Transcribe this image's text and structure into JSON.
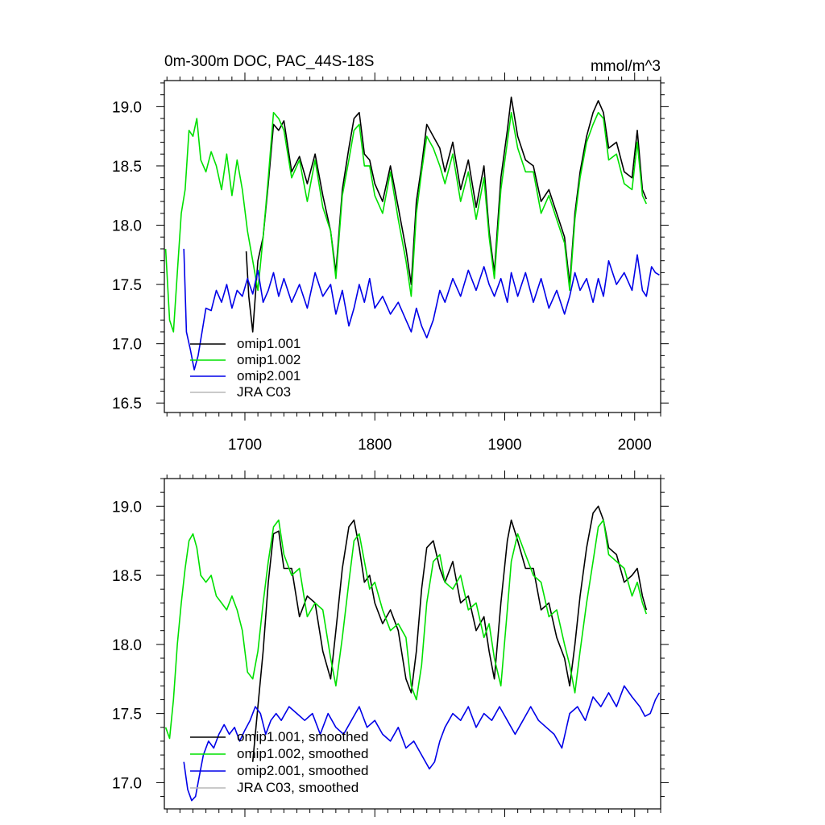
{
  "header": {
    "title": "0m-300m DOC, PAC_44S-18S",
    "units": "mmol/m^3"
  },
  "colors": {
    "omip1_001": "#000000",
    "omip1_002": "#00e000",
    "omip2_001": "#0000e8",
    "jra_c03": "#b8b8b8"
  },
  "chart_data": [
    {
      "type": "line",
      "panel": "raw",
      "title": "0m-300m DOC, PAC_44S-18S",
      "ylabel": "mmol/m^3",
      "xlim": [
        1638,
        2020
      ],
      "ylim": [
        16.42,
        19.22
      ],
      "xticks": [
        1700,
        1800,
        1900,
        2000
      ],
      "xtick_labels": [
        "1700",
        "1800",
        "1900",
        "2000"
      ],
      "yticks": [
        16.5,
        17.0,
        17.5,
        18.0,
        18.5,
        19.0
      ],
      "ytick_labels": [
        "16.5",
        "17.0",
        "17.5",
        "18.0",
        "18.5",
        "19.0"
      ],
      "legend_position": "bottom-left",
      "series": [
        {
          "name": "omip1.001",
          "color_key": "omip1_001",
          "x": [
            1701,
            1703,
            1706,
            1710,
            1714,
            1718,
            1722,
            1726,
            1730,
            1736,
            1742,
            1748,
            1754,
            1760,
            1766,
            1770,
            1775,
            1780,
            1784,
            1788,
            1792,
            1796,
            1800,
            1806,
            1812,
            1818,
            1824,
            1828,
            1832,
            1836,
            1840,
            1845,
            1850,
            1854,
            1860,
            1866,
            1872,
            1878,
            1884,
            1888,
            1892,
            1897,
            1902,
            1905,
            1910,
            1916,
            1922,
            1928,
            1934,
            1940,
            1946,
            1950,
            1954,
            1958,
            1963,
            1968,
            1972,
            1976,
            1980,
            1986,
            1992,
            1998,
            2002,
            2006,
            2009
          ],
          "y": [
            17.78,
            17.4,
            17.1,
            17.7,
            17.9,
            18.35,
            18.85,
            18.8,
            18.88,
            18.45,
            18.58,
            18.35,
            18.6,
            18.25,
            17.95,
            17.6,
            18.3,
            18.65,
            18.9,
            18.95,
            18.6,
            18.55,
            18.35,
            18.2,
            18.5,
            18.15,
            17.8,
            17.5,
            18.2,
            18.5,
            18.85,
            18.75,
            18.65,
            18.45,
            18.7,
            18.3,
            18.55,
            18.15,
            18.5,
            17.95,
            17.6,
            18.4,
            18.8,
            19.08,
            18.75,
            18.55,
            18.5,
            18.2,
            18.3,
            18.1,
            17.9,
            17.5,
            18.1,
            18.45,
            18.75,
            18.95,
            19.05,
            18.95,
            18.65,
            18.7,
            18.45,
            18.4,
            18.8,
            18.3,
            18.22
          ]
        },
        {
          "name": "omip1.002",
          "color_key": "omip1_002",
          "x": [
            1639,
            1642,
            1645,
            1648,
            1651,
            1654,
            1657,
            1660,
            1663,
            1666,
            1670,
            1674,
            1678,
            1682,
            1686,
            1690,
            1694,
            1698,
            1702,
            1706,
            1710,
            1714,
            1718,
            1722,
            1726,
            1730,
            1736,
            1742,
            1748,
            1754,
            1760,
            1766,
            1770,
            1775,
            1780,
            1784,
            1788,
            1792,
            1796,
            1800,
            1806,
            1812,
            1818,
            1824,
            1828,
            1832,
            1836,
            1840,
            1845,
            1850,
            1854,
            1860,
            1866,
            1872,
            1878,
            1884,
            1888,
            1892,
            1897,
            1902,
            1905,
            1910,
            1916,
            1922,
            1928,
            1934,
            1940,
            1946,
            1950,
            1954,
            1958,
            1963,
            1968,
            1972,
            1976,
            1980,
            1986,
            1992,
            1998,
            2002,
            2006,
            2009
          ],
          "y": [
            17.8,
            17.2,
            17.1,
            17.6,
            18.1,
            18.3,
            18.8,
            18.75,
            18.9,
            18.55,
            18.45,
            18.62,
            18.5,
            18.3,
            18.6,
            18.25,
            18.55,
            18.3,
            17.95,
            17.7,
            17.45,
            17.9,
            18.4,
            18.95,
            18.9,
            18.8,
            18.4,
            18.55,
            18.2,
            18.55,
            18.15,
            17.95,
            17.55,
            18.25,
            18.55,
            18.8,
            18.85,
            18.5,
            18.5,
            18.25,
            18.1,
            18.45,
            18.05,
            17.7,
            17.4,
            18.1,
            18.45,
            18.75,
            18.65,
            18.5,
            18.35,
            18.6,
            18.2,
            18.45,
            18.05,
            18.4,
            17.9,
            17.55,
            18.3,
            18.7,
            18.95,
            18.65,
            18.45,
            18.45,
            18.1,
            18.25,
            18.05,
            17.85,
            17.45,
            18.05,
            18.4,
            18.7,
            18.85,
            18.95,
            18.9,
            18.55,
            18.6,
            18.35,
            18.3,
            18.7,
            18.25,
            18.18
          ]
        },
        {
          "name": "omip2.001",
          "color_key": "omip2_001",
          "x": [
            1653,
            1655,
            1658,
            1661,
            1664,
            1667,
            1670,
            1674,
            1678,
            1682,
            1686,
            1690,
            1694,
            1698,
            1702,
            1706,
            1710,
            1714,
            1718,
            1722,
            1726,
            1730,
            1736,
            1742,
            1748,
            1754,
            1760,
            1766,
            1770,
            1775,
            1780,
            1784,
            1788,
            1792,
            1796,
            1800,
            1806,
            1812,
            1818,
            1824,
            1828,
            1832,
            1836,
            1840,
            1845,
            1850,
            1854,
            1860,
            1866,
            1872,
            1878,
            1884,
            1888,
            1892,
            1897,
            1902,
            1905,
            1910,
            1916,
            1922,
            1928,
            1934,
            1940,
            1946,
            1950,
            1954,
            1958,
            1963,
            1968,
            1972,
            1976,
            1980,
            1986,
            1992,
            1998,
            2002,
            2006,
            2009,
            2013,
            2016,
            2019
          ],
          "y": [
            17.8,
            17.1,
            16.95,
            16.78,
            16.9,
            17.1,
            17.3,
            17.28,
            17.45,
            17.35,
            17.5,
            17.3,
            17.45,
            17.4,
            17.55,
            17.42,
            17.62,
            17.35,
            17.45,
            17.6,
            17.4,
            17.55,
            17.35,
            17.5,
            17.3,
            17.6,
            17.4,
            17.5,
            17.25,
            17.45,
            17.15,
            17.3,
            17.5,
            17.35,
            17.55,
            17.3,
            17.4,
            17.25,
            17.35,
            17.2,
            17.1,
            17.3,
            17.15,
            17.05,
            17.2,
            17.45,
            17.35,
            17.55,
            17.4,
            17.62,
            17.45,
            17.65,
            17.5,
            17.4,
            17.55,
            17.35,
            17.6,
            17.4,
            17.6,
            17.35,
            17.55,
            17.3,
            17.45,
            17.25,
            17.4,
            17.6,
            17.45,
            17.55,
            17.35,
            17.55,
            17.4,
            17.7,
            17.5,
            17.6,
            17.45,
            17.75,
            17.45,
            17.4,
            17.65,
            17.6,
            17.58
          ]
        },
        {
          "name": "JRA C03",
          "color_key": "jra_c03",
          "x": [],
          "y": []
        }
      ]
    },
    {
      "type": "line",
      "panel": "smoothed",
      "title": "",
      "ylabel": "",
      "xlim": [
        1638,
        2020
      ],
      "ylim": [
        16.81,
        19.2
      ],
      "xticks": [
        1700,
        1800,
        1900,
        2000
      ],
      "xtick_labels": [],
      "yticks": [
        17.0,
        17.5,
        18.0,
        18.5,
        19.0
      ],
      "ytick_labels": [
        "17.0",
        "17.5",
        "18.0",
        "18.5",
        "19.0"
      ],
      "legend_position": "bottom-left",
      "series": [
        {
          "name": "omip1.001, smoothed",
          "color_key": "omip1_001",
          "x": [
            1706,
            1710,
            1714,
            1718,
            1722,
            1726,
            1730,
            1736,
            1742,
            1748,
            1754,
            1760,
            1766,
            1770,
            1775,
            1780,
            1784,
            1788,
            1792,
            1796,
            1800,
            1806,
            1812,
            1818,
            1824,
            1828,
            1832,
            1836,
            1840,
            1845,
            1850,
            1854,
            1860,
            1866,
            1872,
            1878,
            1884,
            1888,
            1892,
            1897,
            1902,
            1905,
            1910,
            1916,
            1922,
            1928,
            1934,
            1940,
            1946,
            1950,
            1954,
            1958,
            1963,
            1968,
            1972,
            1976,
            1980,
            1986,
            1992,
            1998,
            2002,
            2006,
            2009
          ],
          "y": [
            17.15,
            17.55,
            17.95,
            18.45,
            18.8,
            18.82,
            18.55,
            18.55,
            18.2,
            18.35,
            18.3,
            17.95,
            17.75,
            18.1,
            18.55,
            18.85,
            18.9,
            18.7,
            18.45,
            18.5,
            18.3,
            18.15,
            18.25,
            18.1,
            17.75,
            17.65,
            17.95,
            18.4,
            18.7,
            18.75,
            18.55,
            18.45,
            18.6,
            18.3,
            18.35,
            18.1,
            18.2,
            17.95,
            17.75,
            18.3,
            18.75,
            18.9,
            18.75,
            18.55,
            18.55,
            18.25,
            18.3,
            18.05,
            17.9,
            17.7,
            18.0,
            18.35,
            18.7,
            18.95,
            19.0,
            18.9,
            18.7,
            18.65,
            18.45,
            18.5,
            18.55,
            18.35,
            18.25
          ]
        },
        {
          "name": "omip1.002, smoothed",
          "color_key": "omip1_002",
          "x": [
            1639,
            1642,
            1645,
            1648,
            1651,
            1654,
            1657,
            1660,
            1663,
            1666,
            1670,
            1674,
            1678,
            1682,
            1686,
            1690,
            1694,
            1698,
            1702,
            1706,
            1710,
            1714,
            1718,
            1722,
            1726,
            1730,
            1736,
            1742,
            1748,
            1754,
            1760,
            1766,
            1770,
            1775,
            1780,
            1784,
            1788,
            1792,
            1796,
            1800,
            1806,
            1812,
            1818,
            1824,
            1828,
            1832,
            1836,
            1840,
            1845,
            1850,
            1854,
            1860,
            1866,
            1872,
            1878,
            1884,
            1888,
            1892,
            1897,
            1902,
            1905,
            1910,
            1916,
            1922,
            1928,
            1934,
            1940,
            1946,
            1950,
            1954,
            1958,
            1963,
            1968,
            1972,
            1976,
            1980,
            1986,
            1992,
            1998,
            2002,
            2006,
            2009
          ],
          "y": [
            17.4,
            17.32,
            17.6,
            18.0,
            18.3,
            18.55,
            18.75,
            18.8,
            18.7,
            18.5,
            18.45,
            18.5,
            18.35,
            18.3,
            18.25,
            18.35,
            18.25,
            18.1,
            17.8,
            17.75,
            17.95,
            18.3,
            18.6,
            18.85,
            18.9,
            18.65,
            18.5,
            18.55,
            18.2,
            18.3,
            18.25,
            17.9,
            17.7,
            18.05,
            18.45,
            18.75,
            18.8,
            18.6,
            18.4,
            18.45,
            18.25,
            18.1,
            18.15,
            18.05,
            17.7,
            17.6,
            17.85,
            18.3,
            18.6,
            18.65,
            18.45,
            18.4,
            18.5,
            18.25,
            18.3,
            18.05,
            18.15,
            17.9,
            17.7,
            18.25,
            18.6,
            18.8,
            18.65,
            18.5,
            18.45,
            18.2,
            18.25,
            18.0,
            17.85,
            17.65,
            17.95,
            18.3,
            18.6,
            18.85,
            18.9,
            18.65,
            18.6,
            18.55,
            18.35,
            18.45,
            18.3,
            18.22
          ]
        },
        {
          "name": "omip2.001, smoothed",
          "color_key": "omip2_001",
          "x": [
            1653,
            1656,
            1659,
            1662,
            1665,
            1668,
            1672,
            1676,
            1680,
            1684,
            1688,
            1692,
            1696,
            1700,
            1704,
            1708,
            1712,
            1716,
            1720,
            1724,
            1728,
            1734,
            1740,
            1746,
            1752,
            1758,
            1764,
            1770,
            1776,
            1782,
            1788,
            1794,
            1800,
            1806,
            1812,
            1818,
            1824,
            1830,
            1836,
            1842,
            1846,
            1850,
            1854,
            1860,
            1866,
            1872,
            1878,
            1884,
            1890,
            1896,
            1902,
            1908,
            1914,
            1920,
            1926,
            1932,
            1938,
            1944,
            1950,
            1956,
            1962,
            1968,
            1974,
            1980,
            1986,
            1992,
            1998,
            2004,
            2008,
            2012,
            2016,
            2019
          ],
          "y": [
            17.15,
            16.95,
            16.87,
            16.9,
            17.05,
            17.2,
            17.3,
            17.25,
            17.35,
            17.42,
            17.35,
            17.4,
            17.3,
            17.38,
            17.45,
            17.55,
            17.5,
            17.35,
            17.45,
            17.5,
            17.45,
            17.55,
            17.5,
            17.45,
            17.5,
            17.35,
            17.5,
            17.4,
            17.35,
            17.45,
            17.55,
            17.4,
            17.45,
            17.35,
            17.3,
            17.4,
            17.25,
            17.3,
            17.2,
            17.1,
            17.15,
            17.3,
            17.4,
            17.5,
            17.45,
            17.55,
            17.4,
            17.5,
            17.45,
            17.55,
            17.45,
            17.35,
            17.45,
            17.55,
            17.45,
            17.4,
            17.35,
            17.25,
            17.5,
            17.55,
            17.45,
            17.62,
            17.55,
            17.65,
            17.55,
            17.7,
            17.62,
            17.55,
            17.48,
            17.5,
            17.6,
            17.65
          ]
        },
        {
          "name": "JRA C03, smoothed",
          "color_key": "jra_c03",
          "x": [],
          "y": []
        }
      ]
    }
  ]
}
